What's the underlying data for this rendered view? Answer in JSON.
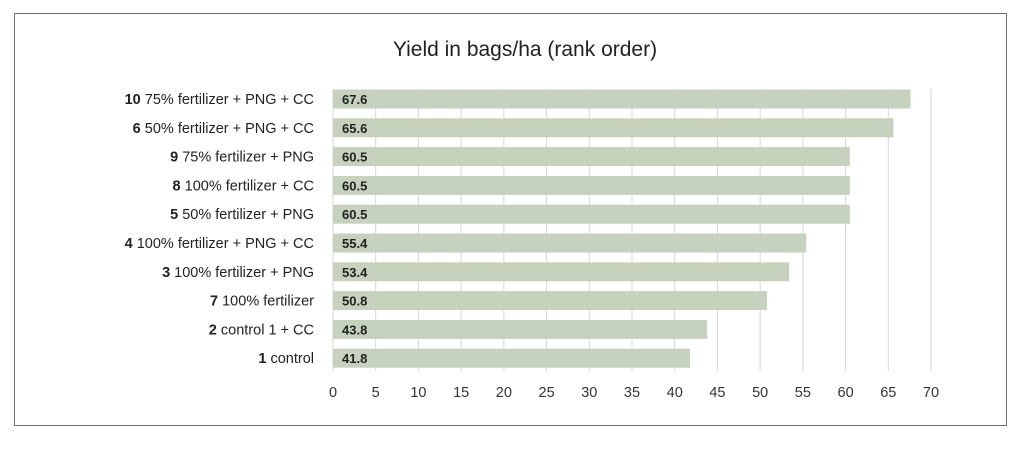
{
  "chart_data": {
    "type": "bar",
    "orientation": "horizontal",
    "title": "Yield in bags/ha (rank order)",
    "xlabel": "",
    "ylabel": "",
    "xlim": [
      0,
      70
    ],
    "ticks": [
      0,
      5,
      10,
      15,
      20,
      25,
      30,
      35,
      40,
      45,
      50,
      55,
      60,
      65,
      70
    ],
    "grid": "vertical",
    "colors": {
      "bar": "#c7d2be",
      "grid": "#d6d6d6",
      "text": "#222222"
    },
    "categories": [
      {
        "number": "10",
        "label": "75% fertilizer + PNG + CC"
      },
      {
        "number": "6",
        "label": "50% fertilizer + PNG + CC"
      },
      {
        "number": "9",
        "label": "75% fertilizer + PNG"
      },
      {
        "number": "8",
        "label": "100% fertilizer + CC"
      },
      {
        "number": "5",
        "label": "50% fertilizer + PNG"
      },
      {
        "number": "4",
        "label": "100% fertilizer + PNG + CC"
      },
      {
        "number": "3",
        "label": "100% fertilizer + PNG"
      },
      {
        "number": "7",
        "label": "100% fertilizer"
      },
      {
        "number": "2",
        "label": "control 1 + CC"
      },
      {
        "number": "1",
        "label": "control"
      }
    ],
    "values": [
      67.6,
      65.6,
      60.5,
      60.5,
      60.5,
      55.4,
      53.4,
      50.8,
      43.8,
      41.8
    ],
    "value_labels": [
      "67.6",
      "65.6",
      "60.5",
      "60.5",
      "60.5",
      "55.4",
      "53.4",
      "50.8",
      "43.8",
      "41.8"
    ]
  }
}
